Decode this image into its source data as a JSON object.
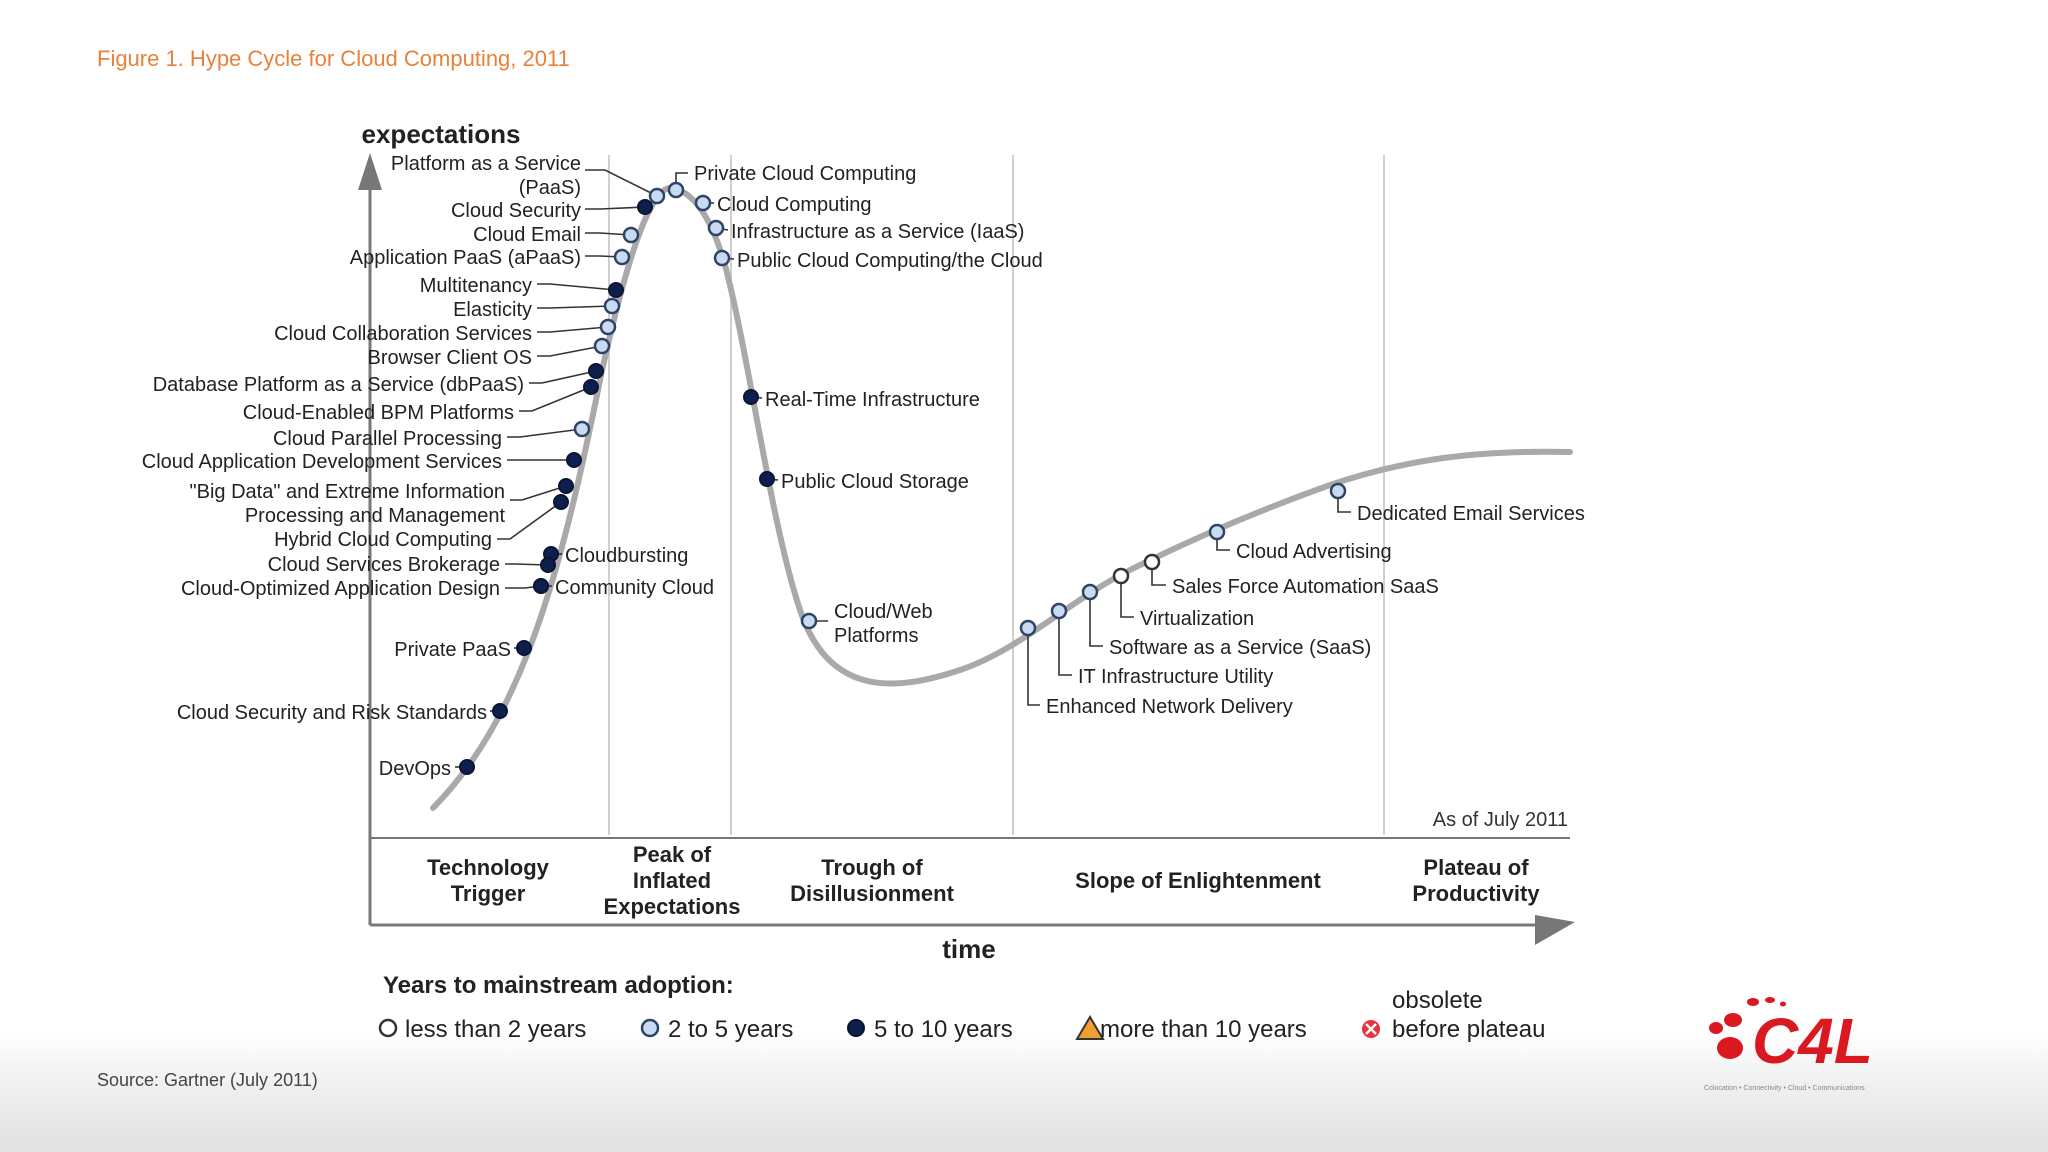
{
  "figure_title": "Figure 1. Hype Cycle for Cloud Computing, 2011",
  "source": "Source: Gartner (July 2011)",
  "as_of": "As of July 2011",
  "axis": {
    "y_label": "expectations",
    "x_label": "time"
  },
  "phases": [
    {
      "id": "trigger",
      "lines": [
        "Technology",
        "Trigger"
      ]
    },
    {
      "id": "peak",
      "lines": [
        "Peak of",
        "Inflated",
        "Expectations"
      ]
    },
    {
      "id": "trough",
      "lines": [
        "Trough of",
        "Disillusionment"
      ]
    },
    {
      "id": "slope",
      "lines": [
        "Slope of Enlightenment"
      ]
    },
    {
      "id": "plateau",
      "lines": [
        "Plateau of",
        "Productivity"
      ]
    }
  ],
  "technologies": [
    {
      "name": "DevOps",
      "category": "5 to 10 years"
    },
    {
      "name": "Cloud Security and Risk Standards",
      "category": "5 to 10 years"
    },
    {
      "name": "Private PaaS",
      "category": "5 to 10 years"
    },
    {
      "name": "Community Cloud",
      "category": "5 to 10 years"
    },
    {
      "name": "Cloudbursting",
      "category": "5 to 10 years"
    },
    {
      "name": "Cloud-Optimized Application Design",
      "category": "5 to 10 years"
    },
    {
      "name": "Cloud Services Brokerage",
      "category": "5 to 10 years"
    },
    {
      "name": "Hybrid Cloud Computing",
      "category": "5 to 10 years"
    },
    {
      "name": "\"Big Data\" and Extreme Information Processing and Management",
      "lines": [
        "\"Big Data\" and Extreme Information",
        "Processing and Management"
      ],
      "category": "5 to 10 years"
    },
    {
      "name": "Cloud Application Development Services",
      "category": "5 to 10 years"
    },
    {
      "name": "Cloud Parallel Processing",
      "category": "2 to 5 years"
    },
    {
      "name": "Cloud-Enabled BPM Platforms",
      "category": "5 to 10 years"
    },
    {
      "name": "Database Platform as a Service (dbPaaS)",
      "category": "5 to 10 years"
    },
    {
      "name": "Browser Client OS",
      "category": "2 to 5 years"
    },
    {
      "name": "Cloud Collaboration Services",
      "category": "2 to 5 years"
    },
    {
      "name": "Elasticity",
      "category": "2 to 5 years"
    },
    {
      "name": "Multitenancy",
      "category": "5 to 10 years"
    },
    {
      "name": "Application PaaS (aPaaS)",
      "category": "2 to 5 years"
    },
    {
      "name": "Cloud Email",
      "category": "2 to 5 years"
    },
    {
      "name": "Cloud Security",
      "category": "5 to 10 years"
    },
    {
      "name": "Platform as a Service (PaaS)",
      "lines": [
        "Platform as a Service",
        "(PaaS)"
      ],
      "category": "2 to 5 years"
    },
    {
      "name": "Private Cloud Computing",
      "category": "2 to 5 years"
    },
    {
      "name": "Cloud Computing",
      "category": "2 to 5 years"
    },
    {
      "name": "Infrastructure as a Service (IaaS)",
      "category": "2 to 5 years"
    },
    {
      "name": "Public Cloud Computing/the Cloud",
      "category": "2 to 5 years"
    },
    {
      "name": "Real-Time Infrastructure",
      "category": "5 to 10 years"
    },
    {
      "name": "Public Cloud Storage",
      "category": "5 to 10 years"
    },
    {
      "name": "Cloud/Web Platforms",
      "lines": [
        "Cloud/Web",
        "Platforms"
      ],
      "category": "2 to 5 years"
    },
    {
      "name": "Enhanced Network Delivery",
      "category": "2 to 5 years"
    },
    {
      "name": "IT Infrastructure Utility",
      "category": "2 to 5 years"
    },
    {
      "name": "Software as a Service (SaaS)",
      "category": "2 to 5 years"
    },
    {
      "name": "Virtualization",
      "category": "less than 2 years"
    },
    {
      "name": "Sales Force Automation SaaS",
      "category": "less than 2 years"
    },
    {
      "name": "Cloud Advertising",
      "category": "2 to 5 years"
    },
    {
      "name": "Dedicated Email Services",
      "category": "2 to 5 years"
    }
  ],
  "legend": {
    "title": "Years to mainstream adoption:",
    "items": [
      {
        "symbol": "open-circle",
        "label": "less than 2 years"
      },
      {
        "symbol": "light-circle",
        "label": "2 to 5 years"
      },
      {
        "symbol": "dark-circle",
        "label": "5 to 10 years"
      },
      {
        "symbol": "triangle",
        "label": "more than 10 years"
      },
      {
        "symbol": "obsolete-x",
        "label_top": "obsolete",
        "label": "before plateau"
      }
    ]
  },
  "logo": {
    "text": "C4L",
    "tagline": "Colocation • Connectivity • Cloud • Communications"
  },
  "colors": {
    "title": "#e8823a",
    "curve": "#a9a9a9",
    "dark_dot": "#0f1f4d",
    "light_dot": "#c9dbf0",
    "logo_red": "#d9191f"
  }
}
